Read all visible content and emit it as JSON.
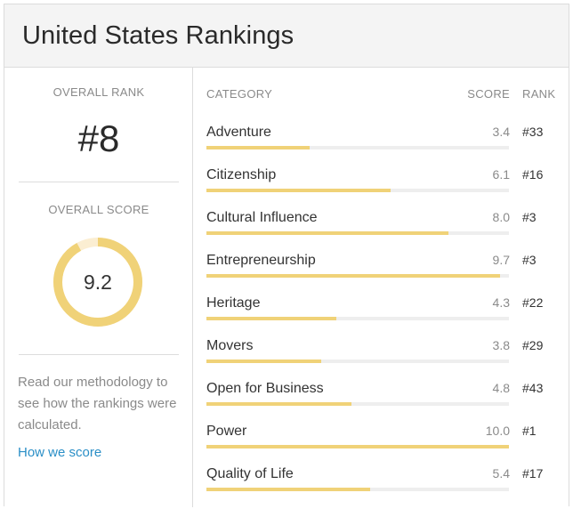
{
  "header": {
    "title": "United States Rankings"
  },
  "overall": {
    "rank_label": "OVERALL RANK",
    "rank_value": "#8",
    "score_label": "OVERALL SCORE",
    "score_value": "9.2",
    "score_fraction": 0.92
  },
  "methodology": {
    "text": "Read our methodology to see how the rankings were calculated.",
    "link_label": "How we score"
  },
  "table": {
    "col_category": "CATEGORY",
    "col_score": "SCORE",
    "col_rank": "RANK",
    "score_max": 10,
    "rows": [
      {
        "category": "Adventure",
        "score": "3.4",
        "rank": "#33"
      },
      {
        "category": "Citizenship",
        "score": "6.1",
        "rank": "#16"
      },
      {
        "category": "Cultural Influence",
        "score": "8.0",
        "rank": "#3"
      },
      {
        "category": "Entrepreneurship",
        "score": "9.7",
        "rank": "#3"
      },
      {
        "category": "Heritage",
        "score": "4.3",
        "rank": "#22"
      },
      {
        "category": "Movers",
        "score": "3.8",
        "rank": "#29"
      },
      {
        "category": "Open for Business",
        "score": "4.8",
        "rank": "#43"
      },
      {
        "category": "Power",
        "score": "10.0",
        "rank": "#1"
      },
      {
        "category": "Quality of Life",
        "score": "5.4",
        "rank": "#17"
      }
    ]
  },
  "colors": {
    "accent": "#f0d278",
    "track": "#eeeeee",
    "donut_rest": "#fbeed2",
    "link": "#2b8fc7"
  }
}
